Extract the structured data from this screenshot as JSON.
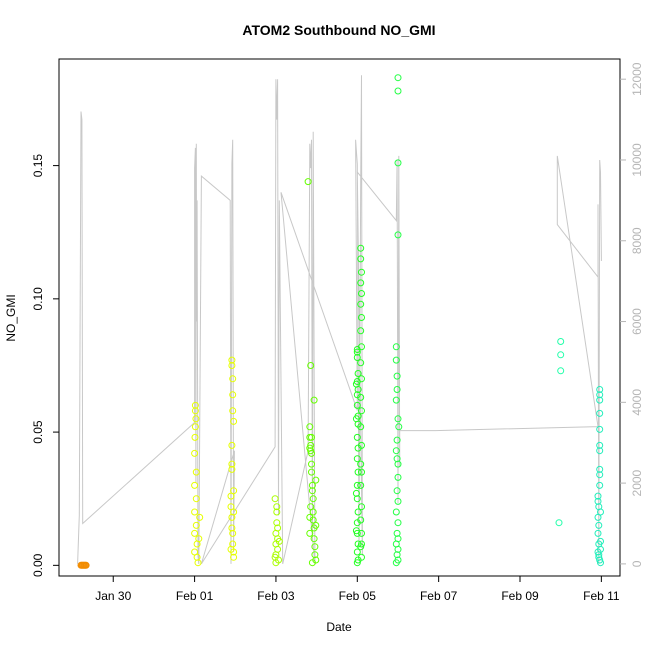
{
  "chart_data": {
    "type": "scatter",
    "title": "ATOM2 Southbound NO_GMI",
    "xlabel": "Date",
    "ylabel": "NO_GMI",
    "xlim": [
      "2016-01-28T16:00",
      "2016-02-11T11:00"
    ],
    "ylim": [
      -0.004,
      0.19
    ],
    "x_ticks": [
      "Jan 30",
      "Feb 01",
      "Feb 03",
      "Feb 05",
      "Feb 07",
      "Feb 09",
      "Feb 11"
    ],
    "y_ticks": [
      "0.00",
      "0.05",
      "0.10",
      "0.15"
    ],
    "y2_ticks": [
      "0",
      "2000",
      "4000",
      "6000",
      "8000",
      "10000",
      "12000"
    ],
    "y2lim": [
      -300,
      12500
    ],
    "y2_color": "#b5b5b5",
    "points_series": [
      {
        "color": "#f28c00",
        "points": [
          [
            "2016-01-29T05:00",
            0.0
          ],
          [
            "2016-01-29T05:30",
            0.0
          ],
          [
            "2016-01-29T06:00",
            0.0
          ],
          [
            "2016-01-29T06:30",
            0.0
          ],
          [
            "2016-01-29T07:00",
            0.0
          ],
          [
            "2016-01-29T07:30",
            0.0
          ],
          [
            "2016-01-29T08:00",
            0.0
          ]
        ]
      },
      {
        "color": "#e6ff00",
        "points": [
          [
            "2016-02-01T00:00",
            0.005
          ],
          [
            "2016-02-01T00:00",
            0.012
          ],
          [
            "2016-02-01T00:00",
            0.02
          ],
          [
            "2016-02-01T00:00",
            0.03
          ],
          [
            "2016-02-01T00:00",
            0.042
          ],
          [
            "2016-02-01T00:30",
            0.052
          ],
          [
            "2016-02-01T00:30",
            0.058
          ],
          [
            "2016-02-01T00:30",
            0.06
          ],
          [
            "2016-02-01T01:00",
            0.035
          ],
          [
            "2016-02-01T01:00",
            0.025
          ],
          [
            "2016-02-01T01:00",
            0.015
          ],
          [
            "2016-02-01T01:30",
            0.008
          ],
          [
            "2016-02-01T01:30",
            0.003
          ],
          [
            "2016-02-01T02:00",
            0.001
          ],
          [
            "2016-02-01T02:30",
            0.01
          ],
          [
            "2016-02-01T03:00",
            0.018
          ],
          [
            "2016-02-01T00:15",
            0.048
          ],
          [
            "2016-02-01T00:45",
            0.055
          ],
          [
            "2016-02-01T22:00",
            0.075
          ],
          [
            "2016-02-01T22:00",
            0.077
          ],
          [
            "2016-02-01T22:30",
            0.07
          ],
          [
            "2016-02-01T22:30",
            0.064
          ],
          [
            "2016-02-01T22:30",
            0.058
          ],
          [
            "2016-02-01T23:00",
            0.054
          ],
          [
            "2016-02-01T22:00",
            0.045
          ],
          [
            "2016-02-01T22:00",
            0.038
          ],
          [
            "2016-02-01T22:00",
            0.036
          ],
          [
            "2016-02-01T21:30",
            0.026
          ],
          [
            "2016-02-01T21:30",
            0.022
          ],
          [
            "2016-02-01T22:00",
            0.018
          ],
          [
            "2016-02-01T22:00",
            0.014
          ],
          [
            "2016-02-01T22:30",
            0.012
          ],
          [
            "2016-02-01T22:30",
            0.008
          ],
          [
            "2016-02-01T23:00",
            0.005
          ],
          [
            "2016-02-01T23:00",
            0.003
          ],
          [
            "2016-02-01T21:30",
            0.006
          ],
          [
            "2016-02-01T23:00",
            0.02
          ],
          [
            "2016-02-01T23:00",
            0.028
          ]
        ]
      },
      {
        "color": "#aaff00",
        "points": [
          [
            "2016-02-03T00:00",
            0.001
          ],
          [
            "2016-02-03T00:00",
            0.004
          ],
          [
            "2016-02-03T00:00",
            0.008
          ],
          [
            "2016-02-03T00:00",
            0.012
          ],
          [
            "2016-02-03T00:30",
            0.016
          ],
          [
            "2016-02-03T00:30",
            0.02
          ],
          [
            "2016-02-03T00:30",
            0.022
          ],
          [
            "2016-02-03T01:00",
            0.014
          ],
          [
            "2016-02-03T01:00",
            0.01
          ],
          [
            "2016-02-03T01:00",
            0.006
          ],
          [
            "2016-02-03T01:30",
            0.002
          ],
          [
            "2016-02-03T02:00",
            0.009
          ],
          [
            "2016-02-02T23:30",
            0.025
          ],
          [
            "2016-02-02T23:30",
            0.003
          ]
        ]
      },
      {
        "color": "#66ff00",
        "points": [
          [
            "2016-02-03T19:00",
            0.144
          ],
          [
            "2016-02-03T20:30",
            0.075
          ],
          [
            "2016-02-03T22:30",
            0.062
          ],
          [
            "2016-02-03T20:00",
            0.052
          ],
          [
            "2016-02-03T20:00",
            0.048
          ],
          [
            "2016-02-03T20:30",
            0.045
          ],
          [
            "2016-02-03T20:30",
            0.043
          ],
          [
            "2016-02-03T21:00",
            0.042
          ],
          [
            "2016-02-03T21:00",
            0.038
          ],
          [
            "2016-02-03T21:00",
            0.035
          ],
          [
            "2016-02-03T21:30",
            0.03
          ],
          [
            "2016-02-03T21:30",
            0.028
          ],
          [
            "2016-02-03T22:00",
            0.025
          ],
          [
            "2016-02-03T22:00",
            0.02
          ],
          [
            "2016-02-03T22:00",
            0.017
          ],
          [
            "2016-02-03T22:30",
            0.014
          ],
          [
            "2016-02-03T22:30",
            0.01
          ],
          [
            "2016-02-03T23:00",
            0.007
          ],
          [
            "2016-02-03T23:00",
            0.004
          ],
          [
            "2016-02-03T23:30",
            0.002
          ],
          [
            "2016-02-03T21:30",
            0.001
          ],
          [
            "2016-02-03T20:00",
            0.012
          ],
          [
            "2016-02-03T20:00",
            0.018
          ],
          [
            "2016-02-03T20:30",
            0.022
          ],
          [
            "2016-02-03T23:30",
            0.032
          ],
          [
            "2016-02-03T23:30",
            0.015
          ],
          [
            "2016-02-03T21:00",
            0.048
          ],
          [
            "2016-02-03T20:00",
            0.044
          ]
        ]
      },
      {
        "color": "#22ff22",
        "points": [
          [
            "2016-02-05T00:00",
            0.081
          ],
          [
            "2016-02-05T00:00",
            0.08
          ],
          [
            "2016-02-05T00:00",
            0.078
          ],
          [
            "2016-02-05T00:30",
            0.072
          ],
          [
            "2016-02-05T00:00",
            0.069
          ],
          [
            "2016-02-05T00:30",
            0.066
          ],
          [
            "2016-02-05T00:00",
            0.064
          ],
          [
            "2016-02-05T00:00",
            0.06
          ],
          [
            "2016-02-05T00:30",
            0.056
          ],
          [
            "2016-02-05T00:30",
            0.053
          ],
          [
            "2016-02-05T00:00",
            0.048
          ],
          [
            "2016-02-05T00:30",
            0.044
          ],
          [
            "2016-02-05T00:00",
            0.04
          ],
          [
            "2016-02-05T00:30",
            0.035
          ],
          [
            "2016-02-05T00:00",
            0.03
          ],
          [
            "2016-02-05T00:00",
            0.025
          ],
          [
            "2016-02-05T00:30",
            0.02
          ],
          [
            "2016-02-05T00:00",
            0.016
          ],
          [
            "2016-02-05T00:00",
            0.012
          ],
          [
            "2016-02-05T00:30",
            0.008
          ],
          [
            "2016-02-05T00:00",
            0.005
          ],
          [
            "2016-02-05T00:30",
            0.002
          ],
          [
            "2016-02-05T00:00",
            0.001
          ],
          [
            "2016-02-04T23:30",
            0.068
          ],
          [
            "2016-02-04T23:30",
            0.055
          ],
          [
            "2016-02-04T23:30",
            0.027
          ],
          [
            "2016-02-04T23:30",
            0.013
          ],
          [
            "2016-02-05T02:00",
            0.119
          ],
          [
            "2016-02-05T02:00",
            0.115
          ],
          [
            "2016-02-05T02:30",
            0.11
          ],
          [
            "2016-02-05T02:00",
            0.106
          ],
          [
            "2016-02-05T02:30",
            0.102
          ],
          [
            "2016-02-05T02:00",
            0.098
          ],
          [
            "2016-02-05T02:30",
            0.093
          ],
          [
            "2016-02-05T02:00",
            0.088
          ],
          [
            "2016-02-05T02:30",
            0.082
          ],
          [
            "2016-02-05T02:00",
            0.076
          ],
          [
            "2016-02-05T02:30",
            0.07
          ],
          [
            "2016-02-05T02:00",
            0.063
          ],
          [
            "2016-02-05T02:30",
            0.058
          ],
          [
            "2016-02-05T02:00",
            0.052
          ],
          [
            "2016-02-05T02:30",
            0.045
          ],
          [
            "2016-02-05T02:00",
            0.038
          ],
          [
            "2016-02-05T02:30",
            0.035
          ],
          [
            "2016-02-05T02:00",
            0.03
          ],
          [
            "2016-02-05T02:30",
            0.022
          ],
          [
            "2016-02-05T02:00",
            0.017
          ],
          [
            "2016-02-05T02:30",
            0.012
          ],
          [
            "2016-02-05T02:00",
            0.007
          ],
          [
            "2016-02-05T02:30",
            0.003
          ],
          [
            "2016-02-05T02:30",
            0.008
          ]
        ]
      },
      {
        "color": "#22ff44",
        "points": [
          [
            "2016-02-06T00:00",
            0.183
          ],
          [
            "2016-02-06T00:00",
            0.178
          ],
          [
            "2016-02-06T00:00",
            0.151
          ],
          [
            "2016-02-06T00:00",
            0.124
          ],
          [
            "2016-02-05T23:00",
            0.082
          ],
          [
            "2016-02-05T23:00",
            0.077
          ],
          [
            "2016-02-05T23:30",
            0.071
          ],
          [
            "2016-02-05T23:30",
            0.066
          ],
          [
            "2016-02-05T23:00",
            0.062
          ],
          [
            "2016-02-06T00:00",
            0.055
          ],
          [
            "2016-02-06T00:30",
            0.052
          ],
          [
            "2016-02-05T23:30",
            0.047
          ],
          [
            "2016-02-05T23:00",
            0.043
          ],
          [
            "2016-02-05T23:30",
            0.04
          ],
          [
            "2016-02-06T00:00",
            0.038
          ],
          [
            "2016-02-06T00:00",
            0.033
          ],
          [
            "2016-02-05T23:30",
            0.028
          ],
          [
            "2016-02-06T00:00",
            0.024
          ],
          [
            "2016-02-05T23:00",
            0.02
          ],
          [
            "2016-02-06T00:00",
            0.016
          ],
          [
            "2016-02-05T23:30",
            0.012
          ],
          [
            "2016-02-06T00:00",
            0.01
          ],
          [
            "2016-02-05T23:00",
            0.008
          ],
          [
            "2016-02-06T00:00",
            0.006
          ],
          [
            "2016-02-05T23:30",
            0.004
          ],
          [
            "2016-02-06T00:00",
            0.002
          ],
          [
            "2016-02-05T23:00",
            0.001
          ]
        ]
      },
      {
        "color": "#22ffaa",
        "points": [
          [
            "2016-02-10T00:00",
            0.084
          ],
          [
            "2016-02-10T00:00",
            0.079
          ],
          [
            "2016-02-10T00:00",
            0.073
          ],
          [
            "2016-02-09T23:00",
            0.016
          ]
        ]
      },
      {
        "color": "#22eebb",
        "points": [
          [
            "2016-02-10T22:00",
            0.026
          ],
          [
            "2016-02-10T22:00",
            0.024
          ],
          [
            "2016-02-10T22:30",
            0.022
          ],
          [
            "2016-02-10T22:00",
            0.018
          ],
          [
            "2016-02-10T22:30",
            0.015
          ],
          [
            "2016-02-10T22:00",
            0.012
          ],
          [
            "2016-02-10T22:30",
            0.008
          ],
          [
            "2016-02-10T22:00",
            0.005
          ],
          [
            "2016-02-10T22:30",
            0.003
          ],
          [
            "2016-02-10T23:00",
            0.066
          ],
          [
            "2016-02-10T23:00",
            0.064
          ],
          [
            "2016-02-10T23:00",
            0.062
          ],
          [
            "2016-02-10T23:00",
            0.057
          ],
          [
            "2016-02-10T23:00",
            0.051
          ],
          [
            "2016-02-10T23:00",
            0.045
          ],
          [
            "2016-02-10T23:00",
            0.043
          ],
          [
            "2016-02-10T23:00",
            0.036
          ],
          [
            "2016-02-10T23:00",
            0.034
          ],
          [
            "2016-02-10T23:00",
            0.03
          ],
          [
            "2016-02-10T23:30",
            0.02
          ],
          [
            "2016-02-10T23:30",
            0.009
          ],
          [
            "2016-02-10T23:30",
            0.006
          ],
          [
            "2016-02-10T23:00",
            0.002
          ],
          [
            "2016-02-10T23:30",
            0.001
          ],
          [
            "2016-02-10T22:30",
            0.004
          ]
        ]
      }
    ],
    "line_series": {
      "color": "#c8c8c8",
      "points": [
        [
          "2016-01-29T03:00",
          0
        ],
        [
          "2016-01-29T04:00",
          1200
        ],
        [
          "2016-01-29T05:00",
          11200
        ],
        [
          "2016-01-29T05:30",
          11000
        ],
        [
          "2016-01-29T06:00",
          1000
        ],
        [
          "2016-02-01T00:00",
          3500
        ],
        [
          "2016-02-01T00:00",
          9800
        ],
        [
          "2016-02-01T00:30",
          10300
        ],
        [
          "2016-02-01T00:45",
          2000
        ],
        [
          "2016-02-01T01:00",
          10400
        ],
        [
          "2016-02-01T01:15",
          6000
        ],
        [
          "2016-02-01T01:30",
          9000
        ],
        [
          "2016-02-01T02:00",
          200
        ],
        [
          "2016-02-01T02:30",
          0
        ],
        [
          "2016-02-01T04:00",
          9600
        ],
        [
          "2016-02-01T21:00",
          9000
        ],
        [
          "2016-02-01T21:30",
          0
        ],
        [
          "2016-02-01T22:00",
          9900
        ],
        [
          "2016-02-01T22:30",
          10500
        ],
        [
          "2016-02-01T23:00",
          300
        ],
        [
          "2016-02-01T23:30",
          2800
        ],
        [
          "2016-02-01T04:00",
          0
        ],
        [
          "2016-02-02T23:30",
          2900
        ],
        [
          "2016-02-03T00:00",
          12000
        ],
        [
          "2016-02-03T00:30",
          11000
        ],
        [
          "2016-02-03T01:00",
          12000
        ],
        [
          "2016-02-03T01:30",
          1200
        ],
        [
          "2016-02-03T02:00",
          9000
        ],
        [
          "2016-02-03T04:00",
          0
        ],
        [
          "2016-02-03T19:00",
          2800
        ],
        [
          "2016-02-03T20:00",
          10400
        ],
        [
          "2016-02-03T20:30",
          9800
        ],
        [
          "2016-02-03T21:00",
          10500
        ],
        [
          "2016-02-03T21:30",
          600
        ],
        [
          "2016-02-03T22:00",
          10700
        ],
        [
          "2016-02-03T23:00",
          0
        ],
        [
          "2016-02-03T03:00",
          9200
        ],
        [
          "2016-02-05T00:00",
          3800
        ],
        [
          "2016-02-04T23:00",
          10500
        ],
        [
          "2016-02-05T00:00",
          9900
        ],
        [
          "2016-02-05T01:00",
          500
        ],
        [
          "2016-02-05T02:00",
          9500
        ],
        [
          "2016-02-05T02:30",
          12100
        ],
        [
          "2016-02-05T03:00",
          200
        ],
        [
          "2016-02-05T00:00",
          9700
        ],
        [
          "2016-02-05T23:00",
          8500
        ],
        [
          "2016-02-05T23:30",
          10000
        ],
        [
          "2016-02-06T00:00",
          1500
        ],
        [
          "2016-02-06T00:30",
          10100
        ],
        [
          "2016-02-06T01:00",
          2400
        ],
        [
          "2016-02-06T01:00",
          3300
        ],
        [
          "2016-02-06T22:00",
          3300
        ],
        [
          "2016-02-10T22:00",
          3400
        ],
        [
          "2016-02-09T22:00",
          10100
        ],
        [
          "2016-02-09T22:00",
          8400
        ],
        [
          "2016-02-10T22:00",
          7100
        ],
        [
          "2016-02-10T22:00",
          8900
        ],
        [
          "2016-02-10T22:30",
          0
        ],
        [
          "2016-02-10T23:00",
          10000
        ],
        [
          "2016-02-10T23:30",
          9700
        ],
        [
          "2016-02-11T00:00",
          7500
        ]
      ]
    }
  }
}
